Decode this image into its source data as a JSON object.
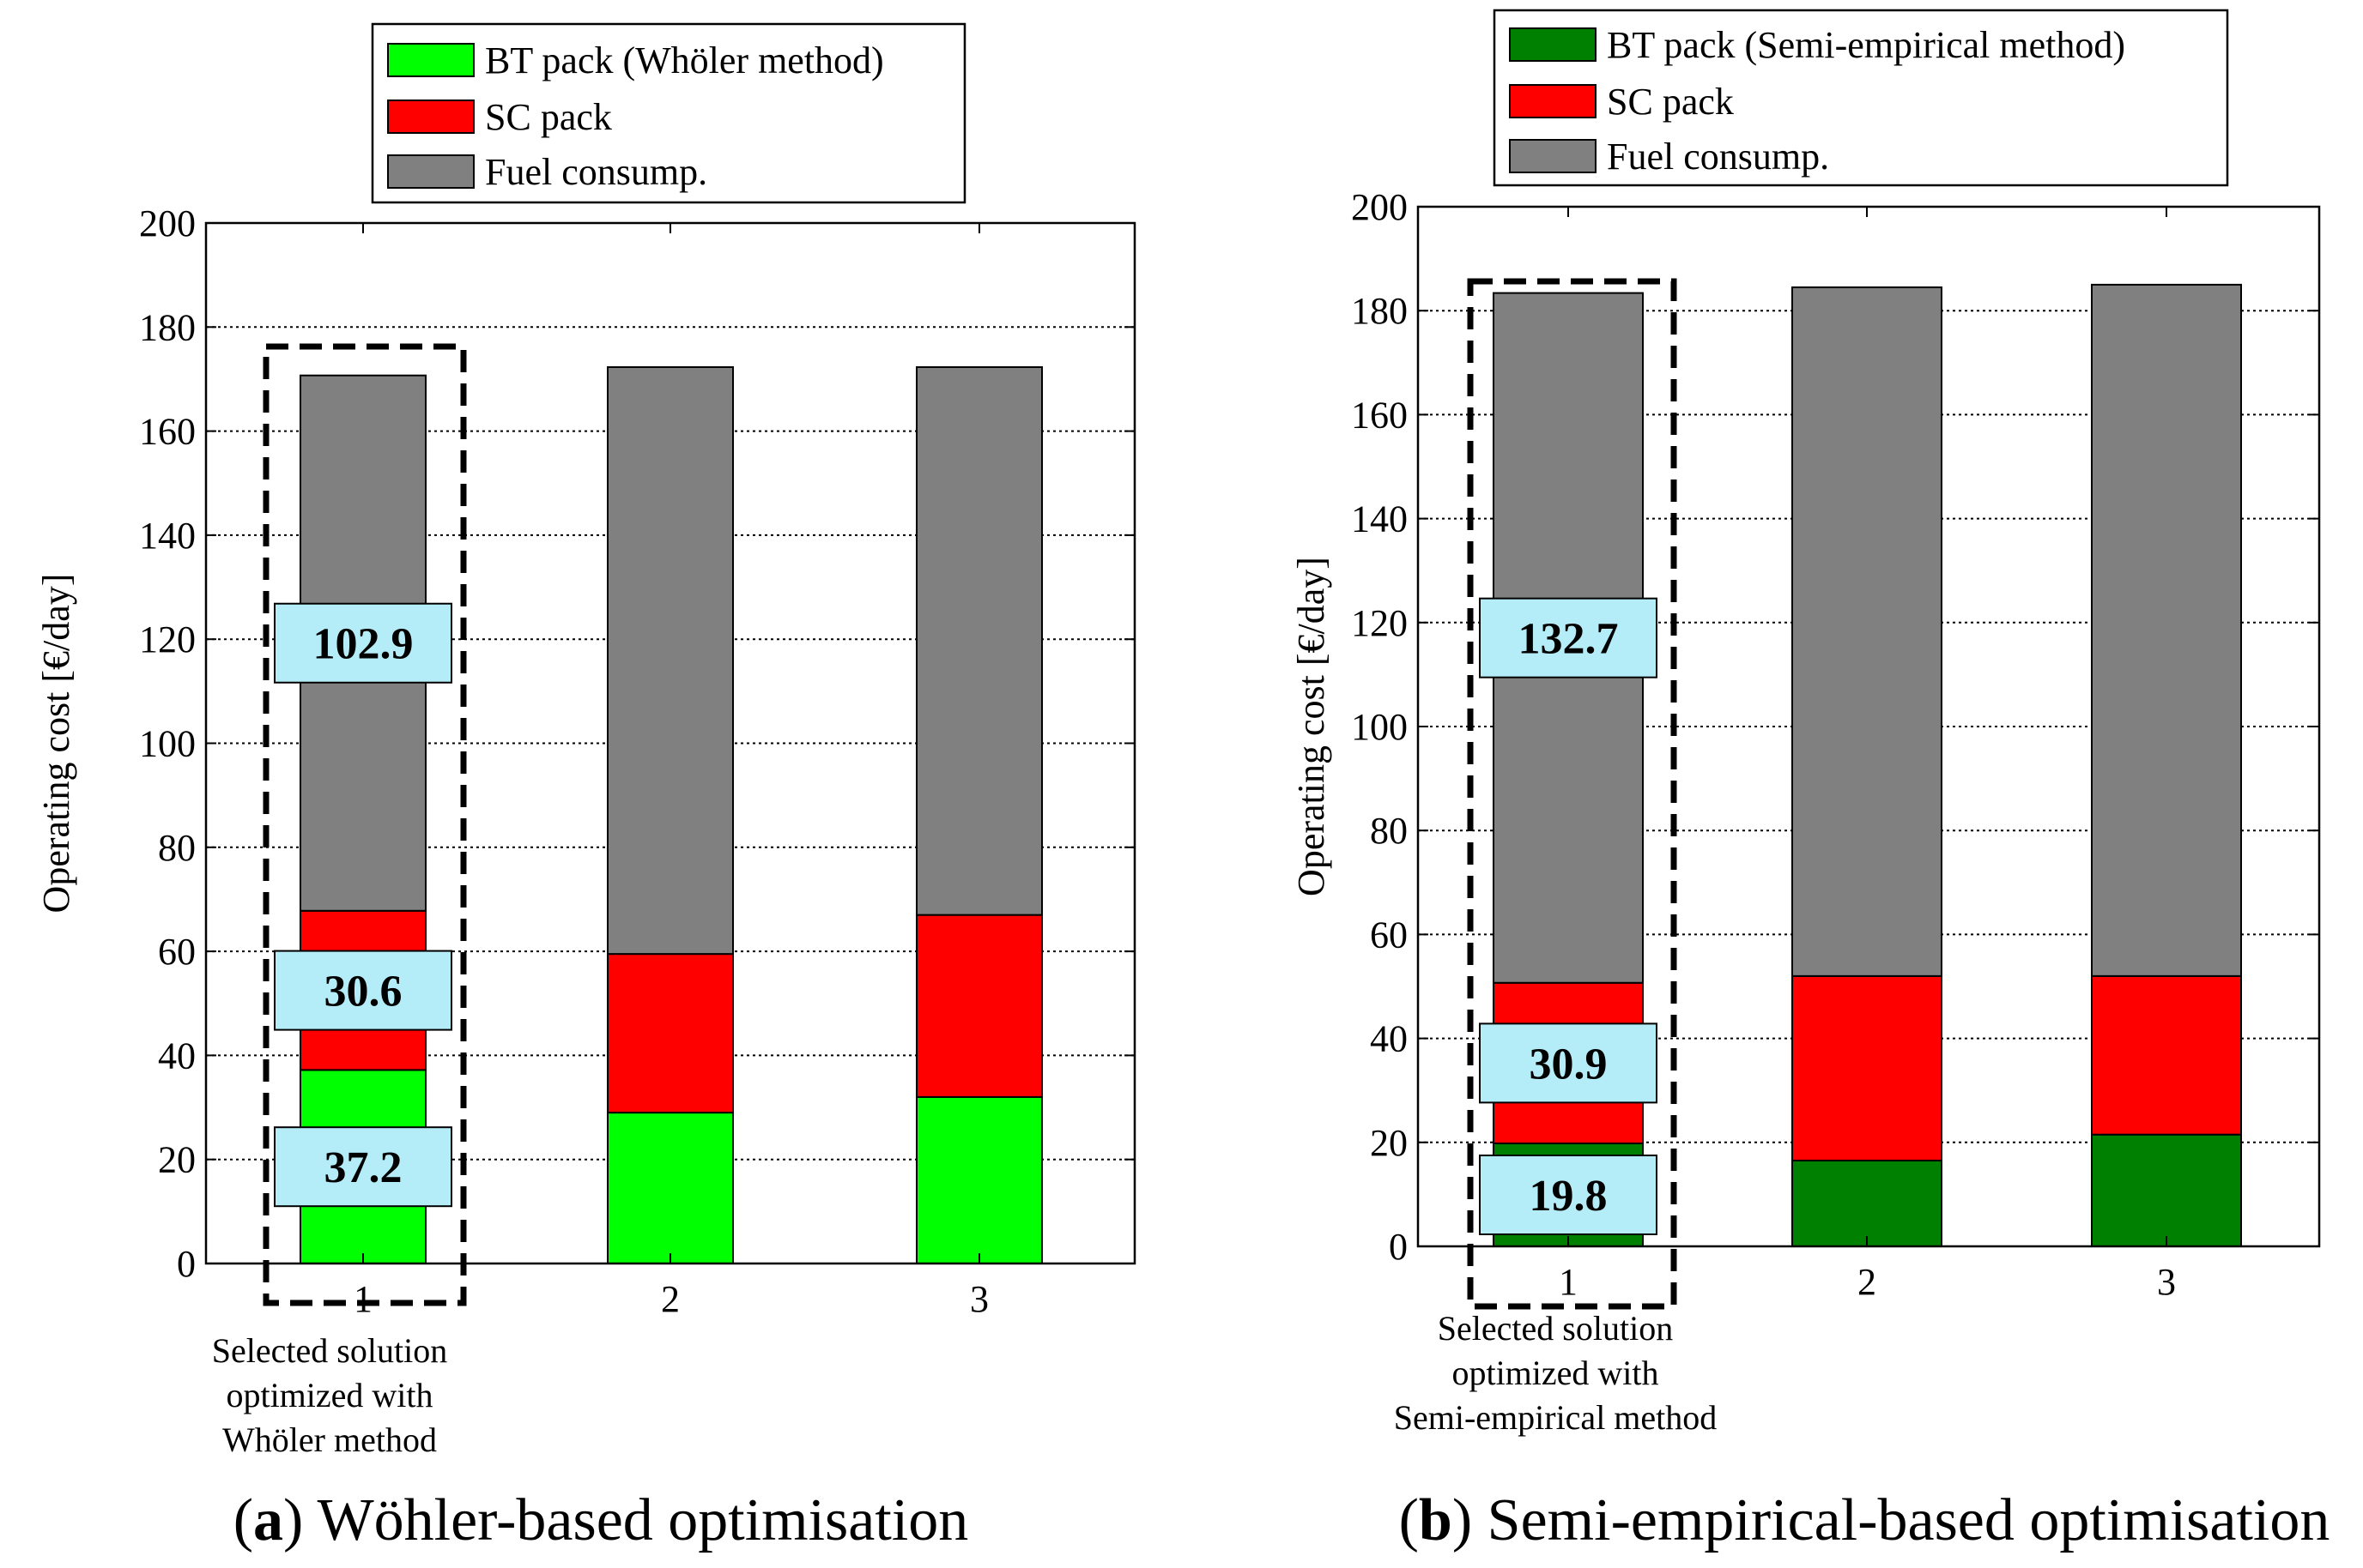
{
  "chart_data": [
    {
      "type": "bar",
      "stacked": true,
      "panel_label": "a",
      "caption": "Wöhler-based optimisation",
      "categories": [
        "1",
        "2",
        "3"
      ],
      "ylabel": "Operating cost [€/day]",
      "ylim": [
        0,
        200
      ],
      "yticks": [
        0,
        20,
        40,
        60,
        80,
        100,
        120,
        140,
        160,
        180,
        200
      ],
      "grid": "y-dotted",
      "series": [
        {
          "name": "BT pack (Whöler method)",
          "color": "#00ff00",
          "values": [
            37.2,
            29,
            32
          ]
        },
        {
          "name": "SC pack",
          "color": "#ff0000",
          "values": [
            30.6,
            30.5,
            35
          ]
        },
        {
          "name": "Fuel consump.",
          "color": "#808080",
          "values": [
            102.9,
            112.8,
            105.3
          ]
        }
      ],
      "callouts": [
        {
          "series": 0,
          "category": 0,
          "label": "37.2"
        },
        {
          "series": 1,
          "category": 0,
          "label": "30.6"
        },
        {
          "series": 2,
          "category": 0,
          "label": "102.9"
        }
      ],
      "callout_color": "#b4ecf8",
      "highlight_category": 0,
      "note_lines": [
        "Selected solution",
        "optimized with",
        "Whöler method"
      ]
    },
    {
      "type": "bar",
      "stacked": true,
      "panel_label": "b",
      "caption": "Semi-empirical-based optimisation",
      "categories": [
        "1",
        "2",
        "3"
      ],
      "ylabel": "Operating cost [€/day]",
      "ylim": [
        0,
        200
      ],
      "yticks": [
        0,
        20,
        40,
        60,
        80,
        100,
        120,
        140,
        160,
        180,
        200
      ],
      "grid": "y-dotted",
      "series": [
        {
          "name": "BT pack (Semi-empirical method)",
          "color": "#008000",
          "values": [
            19.8,
            16.5,
            21.5
          ]
        },
        {
          "name": "SC pack",
          "color": "#ff0000",
          "values": [
            30.9,
            35.5,
            30.5
          ]
        },
        {
          "name": "Fuel consump.",
          "color": "#808080",
          "values": [
            132.7,
            132.5,
            133
          ]
        }
      ],
      "callouts": [
        {
          "series": 0,
          "category": 0,
          "label": "19.8"
        },
        {
          "series": 1,
          "category": 0,
          "label": "30.9"
        },
        {
          "series": 2,
          "category": 0,
          "label": "132.7"
        }
      ],
      "callout_color": "#b4ecf8",
      "highlight_category": 0,
      "note_lines": [
        "Selected solution",
        "optimized with",
        "Semi-empirical method"
      ]
    }
  ]
}
